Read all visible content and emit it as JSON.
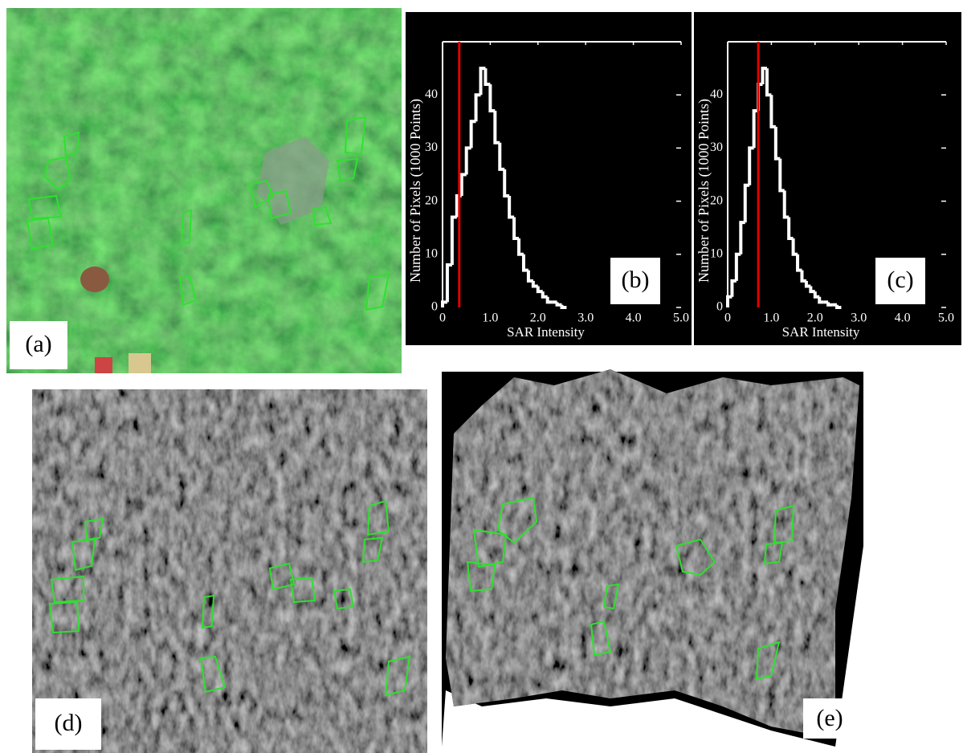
{
  "panels": {
    "a": "(a)",
    "d": "(d)",
    "e": "(e)"
  },
  "chart_data": [
    {
      "type": "histogram",
      "label": "(b)",
      "xlabel": "SAR Intensity",
      "ylabel": "Number of Pixels (1000 Points)",
      "bins": [
        0,
        0.1,
        0.2,
        0.3,
        0.4,
        0.5,
        0.6,
        0.7,
        0.8,
        0.9,
        1.0,
        1.1,
        1.2,
        1.3,
        1.4,
        1.5,
        1.6,
        1.7,
        1.8,
        1.9,
        2.0,
        2.1,
        2.2,
        2.3,
        2.4,
        2.5,
        2.6
      ],
      "values": [
        1,
        8,
        17,
        21,
        25,
        30,
        35,
        40,
        45,
        42,
        37,
        31,
        26,
        21,
        17,
        13,
        10,
        7,
        5,
        4,
        3,
        2,
        1,
        1,
        0.5,
        0
      ],
      "color": "#ffffff",
      "threshold": 0.35,
      "threshold_color": "#e00000",
      "xlim": [
        0,
        5
      ],
      "ylim": [
        0,
        50
      ],
      "xticks": [
        0,
        {
          "value": 1,
          "label": "1.0"
        },
        {
          "value": 2,
          "label": "2.0"
        },
        {
          "value": 3,
          "label": "3.0"
        },
        {
          "value": 4,
          "label": "4.0"
        },
        {
          "value": 5,
          "label": "5.0"
        }
      ],
      "yticks": [
        0,
        10,
        20,
        30,
        40
      ]
    },
    {
      "type": "histogram",
      "label": "(c)",
      "xlabel": "SAR Intensity",
      "ylabel": "Number of Pixels (1000 Points)",
      "bins": [
        0,
        0.1,
        0.2,
        0.3,
        0.4,
        0.5,
        0.6,
        0.7,
        0.8,
        0.9,
        1.0,
        1.1,
        1.2,
        1.3,
        1.4,
        1.5,
        1.6,
        1.7,
        1.8,
        1.9,
        2.0,
        2.1,
        2.2,
        2.3,
        2.4,
        2.5,
        2.6
      ],
      "values": [
        2,
        5,
        10,
        16,
        23,
        30,
        37,
        42,
        45,
        40,
        34,
        28,
        22,
        17,
        13,
        10,
        7,
        5,
        4,
        3,
        2,
        1,
        1,
        0.5,
        0.5,
        0
      ],
      "color": "#ffffff",
      "threshold": 0.7,
      "threshold_color": "#e00000",
      "xlim": [
        0,
        5
      ],
      "ylim": [
        0,
        50
      ],
      "xticks": [
        0,
        {
          "value": 1,
          "label": "1.0"
        },
        {
          "value": 2,
          "label": "2.0"
        },
        {
          "value": 3,
          "label": "3.0"
        },
        {
          "value": 4,
          "label": "4.0"
        },
        {
          "value": 5,
          "label": "5.0"
        }
      ],
      "yticks": [
        0,
        10,
        20,
        30,
        40
      ]
    }
  ]
}
